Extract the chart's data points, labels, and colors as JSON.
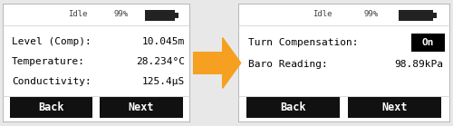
{
  "bg_color": "#e8e8e8",
  "screen_bg": "#ffffff",
  "arrow_color": "#f5a020",
  "left_screen": {
    "status_left": "Idle",
    "status_right": "99%",
    "rows": [
      {
        "label": "Level (Comp):",
        "value": "10.045m"
      },
      {
        "label": "Temperature:",
        "value": "28.234°C"
      },
      {
        "label": "Conductivity:",
        "value": "125.4μS"
      }
    ],
    "btn_back": "Back",
    "btn_next": "Next"
  },
  "right_screen": {
    "status_left": "Idle",
    "status_right": "99%",
    "rows": [
      {
        "label": "Turn Compensation:",
        "value": "On"
      },
      {
        "label": "Baro Reading:",
        "value": "98.89kPa"
      }
    ],
    "btn_back": "Back",
    "btn_next": "Next"
  },
  "font_family": "monospace",
  "status_fontsize": 6.5,
  "row_fontsize": 8.0,
  "btn_fontsize": 8.5
}
